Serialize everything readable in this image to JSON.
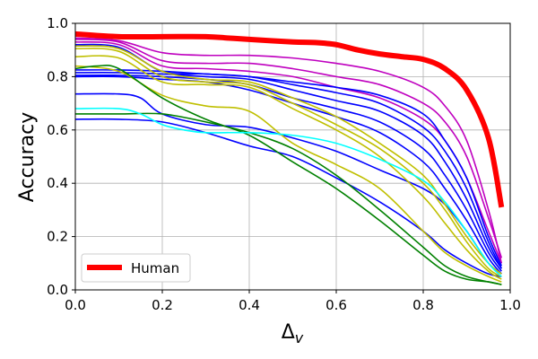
{
  "chart_data": {
    "type": "line",
    "title": "",
    "xlabel": "Δ",
    "xlabel_sub": "v",
    "ylabel": "Accuracy",
    "xlim": [
      0.0,
      1.0
    ],
    "ylim": [
      0.0,
      1.0
    ],
    "x_ticks": [
      0.0,
      0.2,
      0.4,
      0.6,
      0.8,
      1.0
    ],
    "y_ticks": [
      0.0,
      0.2,
      0.4,
      0.6,
      0.8,
      1.0
    ],
    "x_tick_labels": [
      "0.0",
      "0.2",
      "0.4",
      "0.6",
      "0.8",
      "1.0"
    ],
    "y_tick_labels": [
      "0.0",
      "0.2",
      "0.4",
      "0.6",
      "0.8",
      "1.0"
    ],
    "grid": true,
    "legend_position": "lower-left",
    "legend": [
      {
        "label": "Human",
        "color": "#ff0000"
      }
    ],
    "series": [
      {
        "name": "Human",
        "color": "#ff0000",
        "highlight": true,
        "x": [
          0.0,
          0.1,
          0.2,
          0.3,
          0.35,
          0.4,
          0.5,
          0.55,
          0.6,
          0.65,
          0.7,
          0.75,
          0.8,
          0.85,
          0.9,
          0.95,
          0.98
        ],
        "y": [
          0.96,
          0.95,
          0.95,
          0.95,
          0.945,
          0.94,
          0.93,
          0.928,
          0.92,
          0.9,
          0.885,
          0.875,
          0.865,
          0.83,
          0.75,
          0.57,
          0.31
        ]
      },
      {
        "name": "magenta-1",
        "color": "#bf00bf",
        "x": [
          0.0,
          0.1,
          0.2,
          0.3,
          0.4,
          0.5,
          0.6,
          0.7,
          0.8,
          0.85,
          0.9,
          0.95,
          0.98
        ],
        "y": [
          0.945,
          0.935,
          0.89,
          0.88,
          0.88,
          0.87,
          0.85,
          0.82,
          0.76,
          0.69,
          0.56,
          0.3,
          0.1
        ]
      },
      {
        "name": "magenta-2",
        "color": "#bf00bf",
        "x": [
          0.0,
          0.1,
          0.2,
          0.3,
          0.4,
          0.5,
          0.6,
          0.7,
          0.8,
          0.85,
          0.9,
          0.95,
          0.98
        ],
        "y": [
          0.94,
          0.93,
          0.86,
          0.85,
          0.85,
          0.83,
          0.8,
          0.77,
          0.7,
          0.63,
          0.5,
          0.27,
          0.12
        ]
      },
      {
        "name": "magenta-3",
        "color": "#bf00bf",
        "x": [
          0.0,
          0.1,
          0.2,
          0.3,
          0.4,
          0.5,
          0.6,
          0.7,
          0.8,
          0.85,
          0.9,
          0.95,
          0.98
        ],
        "y": [
          0.93,
          0.92,
          0.84,
          0.83,
          0.82,
          0.8,
          0.76,
          0.72,
          0.64,
          0.56,
          0.42,
          0.22,
          0.1
        ]
      },
      {
        "name": "blue-1",
        "color": "#0000ff",
        "x": [
          0.0,
          0.1,
          0.2,
          0.3,
          0.4,
          0.5,
          0.6,
          0.7,
          0.8,
          0.85,
          0.9,
          0.95,
          0.98
        ],
        "y": [
          0.92,
          0.91,
          0.82,
          0.81,
          0.8,
          0.78,
          0.76,
          0.73,
          0.66,
          0.56,
          0.42,
          0.2,
          0.09
        ]
      },
      {
        "name": "blue-2",
        "color": "#0000ff",
        "x": [
          0.0,
          0.1,
          0.2,
          0.3,
          0.4,
          0.5,
          0.6,
          0.7,
          0.8,
          0.85,
          0.9,
          0.95,
          0.98
        ],
        "y": [
          0.825,
          0.825,
          0.82,
          0.81,
          0.8,
          0.77,
          0.74,
          0.7,
          0.61,
          0.52,
          0.38,
          0.18,
          0.08
        ]
      },
      {
        "name": "blue-3",
        "color": "#0000ff",
        "x": [
          0.0,
          0.1,
          0.2,
          0.3,
          0.4,
          0.5,
          0.6,
          0.7,
          0.8,
          0.85,
          0.9,
          0.95,
          0.98
        ],
        "y": [
          0.815,
          0.815,
          0.81,
          0.8,
          0.79,
          0.75,
          0.71,
          0.67,
          0.58,
          0.48,
          0.34,
          0.16,
          0.08
        ]
      },
      {
        "name": "blue-4",
        "color": "#0000ff",
        "x": [
          0.0,
          0.1,
          0.2,
          0.3,
          0.4,
          0.5,
          0.6,
          0.7,
          0.8,
          0.85,
          0.9,
          0.95,
          0.98
        ],
        "y": [
          0.805,
          0.805,
          0.8,
          0.79,
          0.77,
          0.72,
          0.68,
          0.63,
          0.53,
          0.43,
          0.3,
          0.14,
          0.07
        ]
      },
      {
        "name": "blue-5",
        "color": "#0000ff",
        "x": [
          0.0,
          0.1,
          0.2,
          0.3,
          0.4,
          0.5,
          0.6,
          0.7,
          0.8,
          0.85,
          0.9,
          0.95,
          0.98
        ],
        "y": [
          0.8,
          0.8,
          0.79,
          0.78,
          0.75,
          0.7,
          0.65,
          0.59,
          0.48,
          0.38,
          0.26,
          0.12,
          0.06
        ]
      },
      {
        "name": "blue-6",
        "color": "#0000ff",
        "x": [
          0.0,
          0.1,
          0.15,
          0.2,
          0.3,
          0.4,
          0.5,
          0.6,
          0.7,
          0.8,
          0.85,
          0.9,
          0.95,
          0.98
        ],
        "y": [
          0.735,
          0.735,
          0.72,
          0.66,
          0.62,
          0.61,
          0.57,
          0.52,
          0.45,
          0.38,
          0.32,
          0.22,
          0.1,
          0.06
        ]
      },
      {
        "name": "blue-7",
        "color": "#0000ff",
        "x": [
          0.0,
          0.1,
          0.2,
          0.3,
          0.4,
          0.5,
          0.6,
          0.7,
          0.8,
          0.85,
          0.9,
          0.95,
          0.98
        ],
        "y": [
          0.64,
          0.64,
          0.63,
          0.59,
          0.54,
          0.5,
          0.42,
          0.33,
          0.22,
          0.15,
          0.1,
          0.06,
          0.05
        ]
      },
      {
        "name": "olive-1",
        "color": "#bfbf00",
        "x": [
          0.0,
          0.1,
          0.2,
          0.3,
          0.4,
          0.5,
          0.6,
          0.7,
          0.8,
          0.85,
          0.9,
          0.95,
          0.98
        ],
        "y": [
          0.915,
          0.905,
          0.82,
          0.79,
          0.78,
          0.72,
          0.65,
          0.55,
          0.43,
          0.32,
          0.2,
          0.1,
          0.06
        ]
      },
      {
        "name": "olive-2",
        "color": "#bfbf00",
        "x": [
          0.0,
          0.1,
          0.2,
          0.3,
          0.4,
          0.5,
          0.6,
          0.7,
          0.8,
          0.85,
          0.9,
          0.95,
          0.98
        ],
        "y": [
          0.905,
          0.895,
          0.8,
          0.78,
          0.77,
          0.7,
          0.62,
          0.53,
          0.4,
          0.3,
          0.18,
          0.08,
          0.05
        ]
      },
      {
        "name": "olive-3",
        "color": "#bfbf00",
        "x": [
          0.0,
          0.1,
          0.2,
          0.3,
          0.4,
          0.5,
          0.6,
          0.7,
          0.8,
          0.85,
          0.9,
          0.95,
          0.98
        ],
        "y": [
          0.875,
          0.87,
          0.78,
          0.77,
          0.76,
          0.68,
          0.6,
          0.5,
          0.35,
          0.25,
          0.15,
          0.07,
          0.04
        ]
      },
      {
        "name": "olive-4",
        "color": "#bfbf00",
        "x": [
          0.0,
          0.1,
          0.2,
          0.3,
          0.4,
          0.5,
          0.6,
          0.7,
          0.8,
          0.85,
          0.9,
          0.95,
          0.98
        ],
        "y": [
          0.84,
          0.82,
          0.73,
          0.69,
          0.67,
          0.55,
          0.47,
          0.38,
          0.22,
          0.14,
          0.09,
          0.05,
          0.03
        ]
      },
      {
        "name": "green-1",
        "color": "#008000",
        "x": [
          0.0,
          0.05,
          0.1,
          0.2,
          0.3,
          0.4,
          0.5,
          0.6,
          0.7,
          0.8,
          0.85,
          0.9,
          0.95,
          0.98
        ],
        "y": [
          0.83,
          0.84,
          0.83,
          0.72,
          0.64,
          0.58,
          0.48,
          0.38,
          0.26,
          0.13,
          0.07,
          0.04,
          0.03,
          0.02
        ]
      },
      {
        "name": "green-2",
        "color": "#008000",
        "x": [
          0.0,
          0.1,
          0.2,
          0.3,
          0.4,
          0.5,
          0.6,
          0.7,
          0.8,
          0.85,
          0.9,
          0.95,
          0.98
        ],
        "y": [
          0.66,
          0.66,
          0.66,
          0.63,
          0.59,
          0.53,
          0.43,
          0.3,
          0.16,
          0.09,
          0.05,
          0.03,
          0.02
        ]
      },
      {
        "name": "cyan-1",
        "color": "#00ffff",
        "x": [
          0.0,
          0.1,
          0.15,
          0.2,
          0.25,
          0.3,
          0.4,
          0.5,
          0.6,
          0.7,
          0.8,
          0.85,
          0.9,
          0.95,
          0.98
        ],
        "y": [
          0.68,
          0.68,
          0.66,
          0.62,
          0.6,
          0.59,
          0.59,
          0.58,
          0.55,
          0.49,
          0.41,
          0.33,
          0.22,
          0.1,
          0.05
        ]
      }
    ]
  }
}
